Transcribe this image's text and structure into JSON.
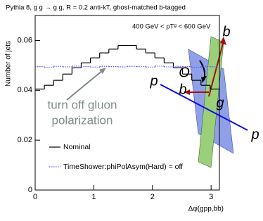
{
  "chart_data": {
    "type": "histogram",
    "title": "Pythia 8, g g → g g, R = 0.2 anti-kT, ghost-matched b-tagged",
    "subtitle": "400 GeV < pTᵍ < 600 GeV",
    "xlabel": "Δφ(gpp,bb)",
    "ylabel": "Number of jets",
    "annotation": [
      "turn off gluon",
      "polarization"
    ],
    "diagram_labels": [
      "b",
      "O",
      "p",
      "b",
      "g",
      "p"
    ],
    "bins": [
      0,
      0.1571,
      0.3142,
      0.4712,
      0.6283,
      0.7854,
      0.9425,
      1.0996,
      1.2566,
      1.4137,
      1.5708,
      1.7279,
      1.885,
      2.042,
      2.1991,
      2.3562,
      2.5133,
      2.6704,
      2.8274,
      2.9845,
      3.1416
    ],
    "series": [
      {
        "name": "Nominal",
        "color": "#000000",
        "style": "solid",
        "values": [
          0.0405,
          0.042,
          0.044,
          0.0465,
          0.049,
          0.051,
          0.053,
          0.055,
          0.0565,
          0.058,
          0.058,
          0.0565,
          0.055,
          0.053,
          0.051,
          0.049,
          0.0465,
          0.044,
          0.042,
          0.0405
        ]
      },
      {
        "name": "TimeShower:phiPolAsym(Hard) = off",
        "color": "#5a5aff",
        "style": "dotted",
        "values": [
          0.0495,
          0.0492,
          0.0496,
          0.0494,
          0.0497,
          0.0495,
          0.0493,
          0.0496,
          0.0495,
          0.0494,
          0.0496,
          0.0495,
          0.0493,
          0.0497,
          0.0494,
          0.0496,
          0.0495,
          0.0492,
          0.0496,
          0.0494
        ]
      }
    ],
    "xlim": [
      0,
      3.1416
    ],
    "ylim": [
      0,
      0.07
    ],
    "xticks": [
      0,
      1,
      2,
      3
    ],
    "yticks": [
      0,
      0.02,
      0.04,
      0.06
    ]
  }
}
